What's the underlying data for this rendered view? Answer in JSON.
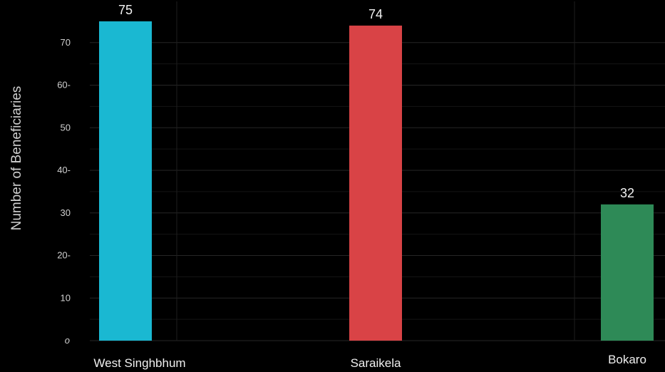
{
  "chart_data": {
    "type": "bar",
    "categories": [
      "West Singhbhum",
      "Saraikela",
      "Bokaro"
    ],
    "values": [
      75,
      74,
      32
    ],
    "value_labels": [
      "75",
      "74",
      "32"
    ],
    "colors": [
      "#1ab8d2",
      "#d94346",
      "#2e8a57"
    ],
    "ylabel": "Number of Beneficiaries",
    "xlabel": "",
    "ylim": [
      0,
      78
    ],
    "yticks": [
      0,
      10,
      20,
      30,
      40,
      50,
      60,
      70
    ],
    "ytick_labels": [
      "o",
      "10",
      "20-",
      "30",
      "40-",
      "50",
      "60-",
      "70"
    ],
    "grid": true,
    "background": "#000000"
  }
}
